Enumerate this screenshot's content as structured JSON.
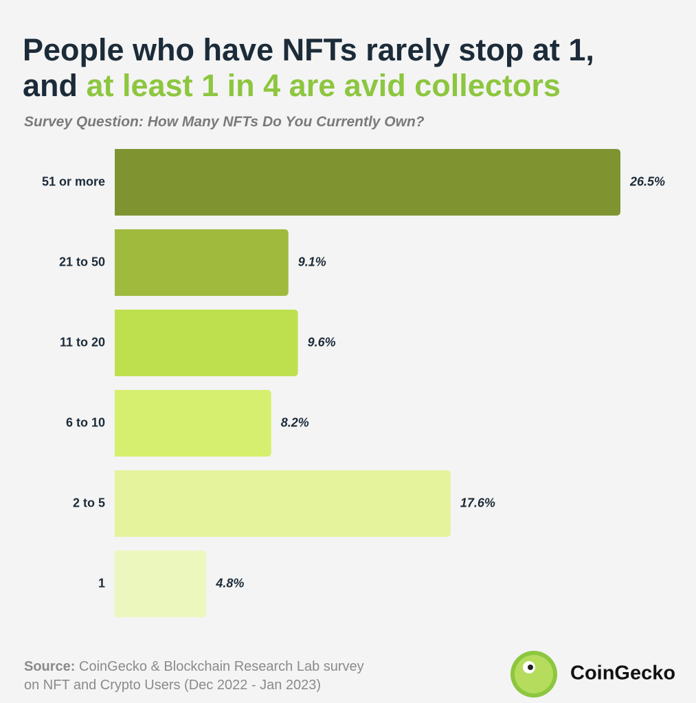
{
  "chart_data": {
    "type": "bar",
    "orientation": "horizontal",
    "title": "People who have NFTs rarely stop at 1,",
    "title_line2": "and",
    "title_highlight": "at least 1 in 4 are avid collectors",
    "subtitle": "Survey Question: How Many NFTs Do You Currently Own?",
    "categories": [
      "51 or more",
      "21 to 50",
      "11 to 20",
      "6 to 10",
      "2 to 5",
      "1"
    ],
    "values": [
      26.5,
      9.1,
      9.6,
      8.2,
      17.6,
      4.8
    ],
    "value_labels": [
      "26.5%",
      "9.1%",
      "9.6%",
      "8.2%",
      "17.6%",
      "4.8%"
    ],
    "colors": [
      "#7f9431",
      "#9fba3d",
      "#bee04f",
      "#d6ef6e",
      "#e4f39c",
      "#ecf7be"
    ],
    "source": {
      "label": "Source:",
      "line1": "CoinGecko & Blockchain Research Lab survey",
      "line2": "on NFT and Crypto Users (Dec 2022 - Jan 2023)"
    },
    "brand": "CoinGecko"
  }
}
